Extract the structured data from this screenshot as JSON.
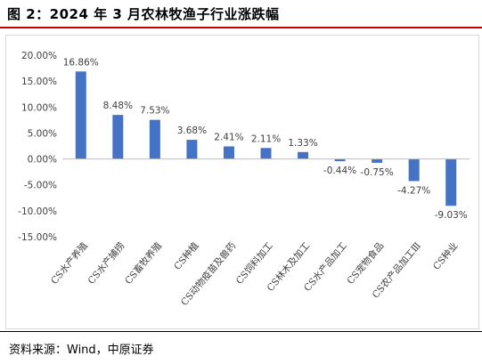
{
  "header": {
    "title": "图 2：2024 年 3 月农林牧渔子行业涨跌幅"
  },
  "footer": {
    "source": "资料来源：Wind，中原证券"
  },
  "colors": {
    "bar": "#4472c4",
    "axis": "#bfbfbf",
    "text": "#404040",
    "title_rule": "#c00000"
  },
  "chart_data": {
    "type": "bar",
    "categories": [
      "CS水产养殖",
      "CS水产捕捞",
      "CS畜牧养殖",
      "CS种植",
      "CS动物疫苗及兽药",
      "CS饲料加工",
      "CS林木及加工",
      "CS水产品加工",
      "CS宠物食品",
      "CS农产品加工Ⅲ",
      "CS种业"
    ],
    "values": [
      16.86,
      8.48,
      7.53,
      3.68,
      2.41,
      2.11,
      1.33,
      -0.44,
      -0.75,
      -4.27,
      -9.03
    ],
    "data_labels": [
      "16.86%",
      "8.48%",
      "7.53%",
      "3.68%",
      "2.41%",
      "2.11%",
      "1.33%",
      "-0.44%",
      "-0.75%",
      "-4.27%",
      "-9.03%"
    ],
    "yticks": [
      20,
      15,
      10,
      5,
      0,
      -5,
      -10,
      -15
    ],
    "ytick_labels": [
      "20.00%",
      "15.00%",
      "10.00%",
      "5.00%",
      "0.00%",
      "-5.00%",
      "-10.00%",
      "-15.00%"
    ],
    "ylim": [
      -15,
      20
    ],
    "grid": false,
    "legend": "none"
  }
}
